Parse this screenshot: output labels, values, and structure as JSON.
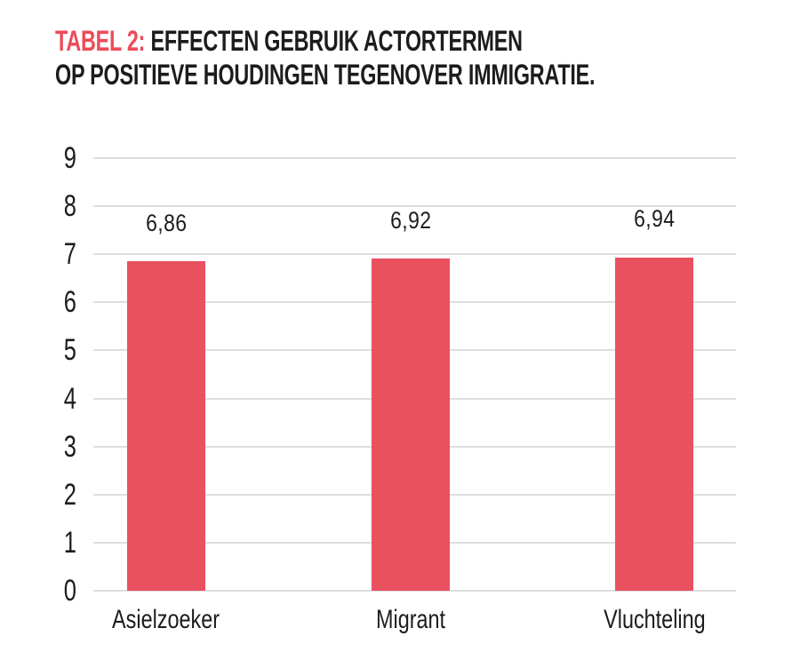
{
  "chart_data": {
    "type": "bar",
    "title": {
      "accent": "TABEL 2:",
      "line1_rest": "EFFECTEN GEBRUIK ACTORTERMEN",
      "line2": "OP POSITIEVE HOUDINGEN TEGENOVER IMMIGRATIE."
    },
    "categories": [
      "Asielzoeker",
      "Migrant",
      "Vluchteling"
    ],
    "values": [
      6.86,
      6.92,
      6.94
    ],
    "value_labels": [
      "6,86",
      "6,92",
      "6,94"
    ],
    "xlabel": "",
    "ylabel": "",
    "ylim": [
      0,
      9
    ],
    "yticks": [
      0,
      1,
      2,
      3,
      4,
      5,
      6,
      7,
      8,
      9
    ],
    "grid": "horizontal",
    "legend": "none",
    "colors": {
      "bar": "#E9515F",
      "title_accent": "#EE4B58",
      "gridline": "#DEDEDE",
      "text": "#1C1C1C",
      "background": "#FFFFFF"
    }
  }
}
